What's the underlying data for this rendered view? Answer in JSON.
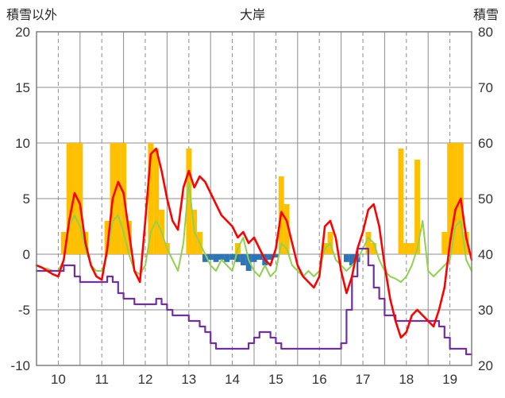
{
  "header": {
    "left_axis_title": "積雪以外",
    "title": "大岸",
    "right_axis_title": "積雪"
  },
  "chart_data": {
    "type": "line",
    "title": "大岸",
    "subtitle": "",
    "x_start": 9.5,
    "x_step": 0.125,
    "x_end": 19.5,
    "x_ticks": [
      10,
      11,
      12,
      13,
      14,
      15,
      16,
      17,
      18,
      19
    ],
    "left_axis": {
      "title": "積雪以外",
      "min": -10,
      "max": 20,
      "ticks": [
        20,
        15,
        10,
        5,
        0,
        -5,
        -10
      ]
    },
    "right_axis": {
      "title": "積雪",
      "min": 20,
      "max": 80,
      "ticks": [
        80,
        70,
        60,
        50,
        40,
        30,
        20
      ]
    },
    "grid": {
      "color": "#8c8c8c",
      "border_color": "#7f7f7f",
      "v_solid_x": [
        10.5,
        11.5,
        12.5,
        13.5,
        14.5,
        15.5,
        16.5,
        17.5,
        18.5
      ],
      "v_dashed_x": [
        10,
        11,
        12,
        13,
        14,
        15,
        16,
        17,
        18,
        19
      ]
    },
    "series": [
      {
        "name": "orange-bars",
        "type": "bar",
        "axis": "left",
        "color": "#FFC000",
        "values": [
          0,
          0,
          0,
          0,
          0,
          2,
          10,
          10,
          10,
          2,
          0,
          0,
          0,
          3,
          10,
          10,
          10,
          3,
          0,
          0,
          0,
          10,
          9.5,
          4,
          1,
          0,
          0,
          0,
          9.5,
          4,
          2,
          0,
          0,
          0,
          0,
          0,
          0,
          1,
          0,
          0,
          0,
          0,
          0,
          0,
          0,
          7,
          4.5,
          0,
          0,
          0,
          0,
          0,
          0,
          1,
          2,
          0,
          0,
          0,
          0,
          0,
          0,
          2,
          1,
          0,
          0,
          0,
          0,
          9.5,
          1,
          1,
          8.5,
          0,
          0,
          0,
          0,
          2,
          10,
          10,
          10,
          2,
          0
        ]
      },
      {
        "name": "blue-bars",
        "type": "bar",
        "axis": "left",
        "color": "#2E75B6",
        "values": [
          0,
          0,
          0,
          0,
          0,
          0,
          0,
          0,
          0,
          0,
          0,
          0,
          0,
          0,
          0,
          0,
          0,
          0,
          0,
          0,
          0,
          0,
          0,
          0,
          0,
          0,
          0,
          0,
          0,
          0,
          0,
          -0.7,
          -0.5,
          -0.7,
          -0.5,
          -0.7,
          -0.5,
          -0.7,
          -1,
          -1.5,
          -0.7,
          -0.5,
          -1,
          -0.5,
          -0.3,
          0,
          0,
          0,
          0,
          0,
          0,
          0,
          0,
          0,
          0,
          0,
          0,
          -0.7,
          -1,
          -0.7,
          0,
          0,
          0,
          0,
          0,
          0,
          0,
          0,
          0,
          0,
          0,
          0,
          0,
          0,
          0,
          0,
          0,
          0,
          0,
          0,
          0
        ]
      },
      {
        "name": "green-line",
        "type": "line",
        "axis": "left",
        "color": "#92D050",
        "width": 2,
        "values": [
          -1,
          -1.2,
          -1.3,
          -1.5,
          -1.5,
          -0.5,
          2.5,
          3.5,
          2.5,
          0.5,
          -1,
          -1.5,
          -1.5,
          0,
          3,
          3.5,
          2,
          0,
          -1.5,
          -1.8,
          -1,
          2,
          3,
          2,
          0.5,
          -0.5,
          -1.5,
          1,
          6.5,
          2,
          1,
          0,
          -1,
          -1.5,
          -0.5,
          -1,
          -1.5,
          0.5,
          1.5,
          -0.5,
          -1.5,
          -2,
          -1,
          -2,
          -1.5,
          1,
          0.5,
          -1,
          -1.5,
          -2,
          -1.5,
          -2,
          -1.5,
          0.5,
          1,
          -0.5,
          -1,
          -1.5,
          -1,
          -0.5,
          0.5,
          1.5,
          1,
          -0.5,
          -1.5,
          -2,
          -2.2,
          -2.5,
          -2,
          -1,
          0.5,
          3,
          -1.5,
          -2,
          -1.5,
          -1,
          -0.5,
          2.5,
          3,
          -0.5,
          -1.5
        ]
      },
      {
        "name": "snow-depth-line",
        "type": "line",
        "axis": "right",
        "color": "#7030A0",
        "width": 2.2,
        "step": true,
        "values": [
          37,
          37,
          37,
          37,
          37,
          38,
          38,
          36,
          35,
          35,
          35,
          35,
          35,
          36,
          35,
          33,
          32,
          32,
          31,
          31,
          31,
          31,
          32,
          31,
          30,
          29,
          29,
          29,
          28,
          28,
          27,
          26,
          24,
          23,
          23,
          23,
          23,
          23,
          23,
          24,
          25,
          26,
          26,
          25,
          24,
          23,
          23,
          23,
          23,
          23,
          23,
          23,
          23,
          23,
          23,
          23,
          24,
          30,
          36,
          41,
          41,
          38,
          34,
          32,
          29,
          29,
          28,
          28,
          28,
          28,
          28,
          28,
          28,
          28,
          27,
          25,
          23,
          23,
          23,
          22,
          22
        ]
      },
      {
        "name": "red-line",
        "type": "line",
        "axis": "left",
        "color": "#FF0000",
        "width": 2.6,
        "values": [
          -1,
          -1.2,
          -1.5,
          -1.8,
          -2,
          -0.5,
          3,
          5.5,
          4.5,
          1,
          -1,
          -2,
          -2.3,
          0.5,
          5,
          6.5,
          5.5,
          2,
          -1.5,
          -2.5,
          3,
          9,
          9.5,
          7.5,
          5,
          3,
          2.2,
          6,
          7.5,
          6,
          7,
          6.5,
          5.5,
          4.5,
          3.5,
          3,
          2.5,
          1.5,
          2,
          1,
          1.5,
          0.5,
          -0.5,
          -1,
          0.5,
          3.8,
          3,
          1,
          -1,
          -2,
          -2.5,
          -3,
          -2,
          2.5,
          3,
          1.5,
          -1.5,
          -3.5,
          -2,
          0.5,
          2,
          4,
          4.5,
          2.5,
          -1,
          -4,
          -6,
          -7.5,
          -7,
          -5.5,
          -5,
          -5.5,
          -6,
          -6.5,
          -5,
          -3,
          1,
          4,
          5,
          1.5,
          -0.5
        ]
      }
    ]
  }
}
